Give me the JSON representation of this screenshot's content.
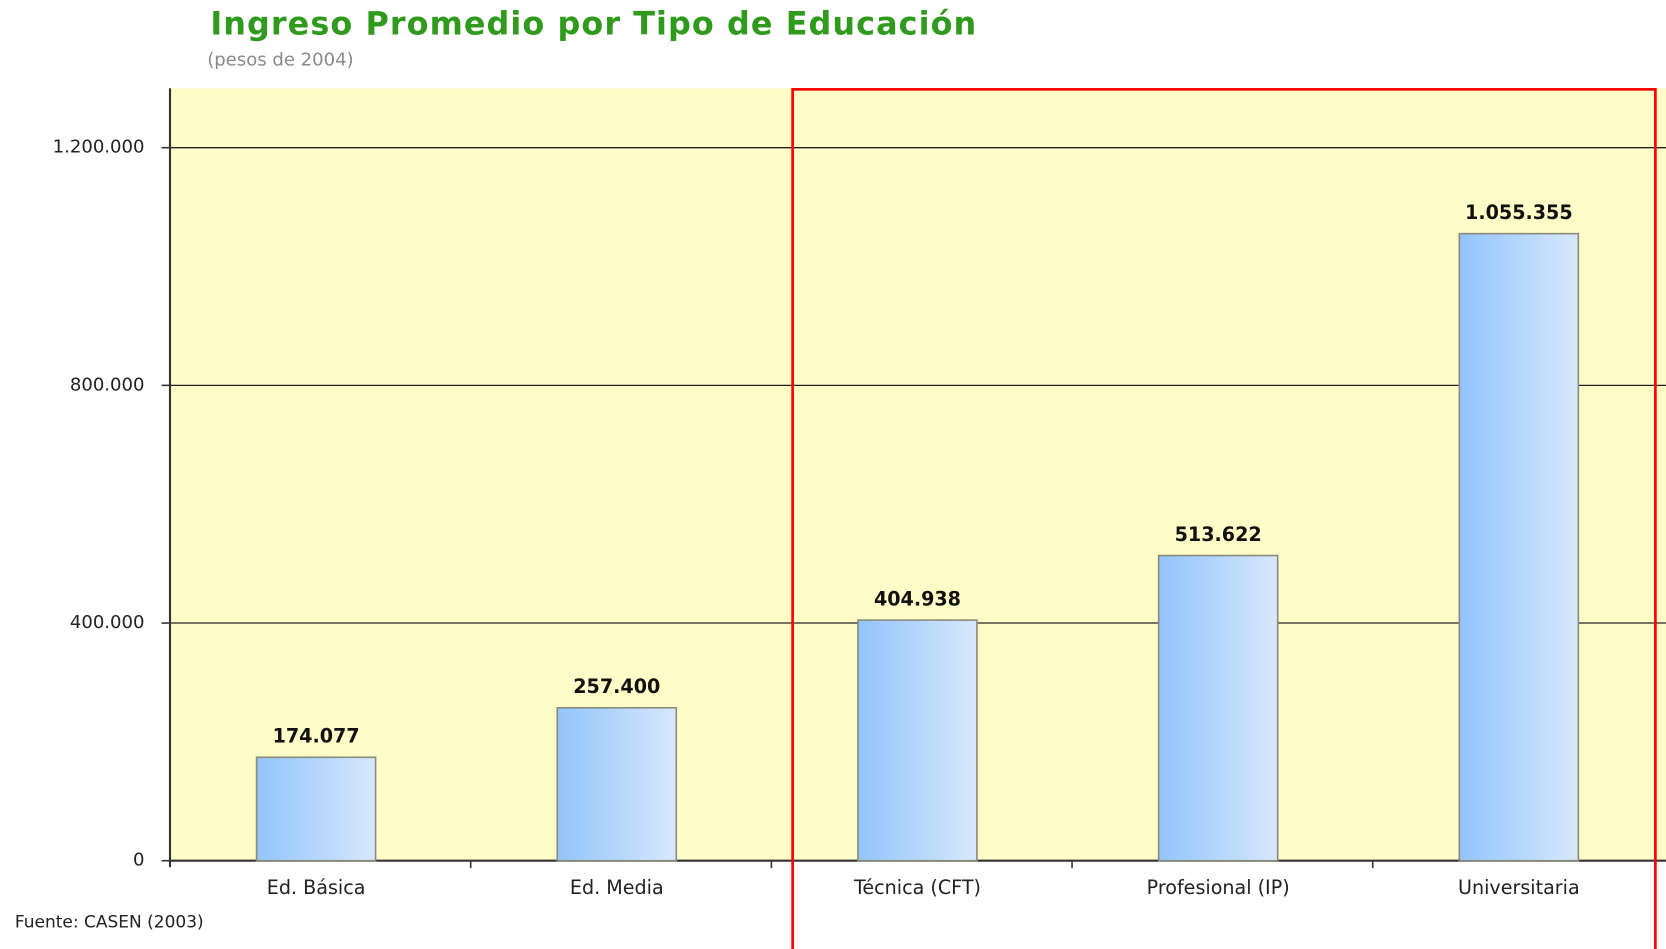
{
  "chart_data": {
    "type": "bar",
    "title": "Ingreso Promedio por Tipo de Educación",
    "subtitle": "(pesos de 2004)",
    "source": "Fuente: CASEN (2003)",
    "categories": [
      "Ed. Básica",
      "Ed. Media",
      "Técnica (CFT)",
      "Profesional (IP)",
      "Universitaria"
    ],
    "values": [
      174077,
      257400,
      404938,
      513622,
      1055355
    ],
    "value_labels": [
      "174.077",
      "257.400",
      "404.938",
      "513.622",
      "1.055.355"
    ],
    "color": "#a9d0fa",
    "ylim": [
      0,
      1300000
    ],
    "yticks": [
      0,
      {
        "value": 400000,
        "label": "400.000"
      },
      {
        "value": 800000,
        "label": "800.000"
      },
      {
        "value": 1200000,
        "label": "1.200.000"
      }
    ],
    "grid": true
  }
}
